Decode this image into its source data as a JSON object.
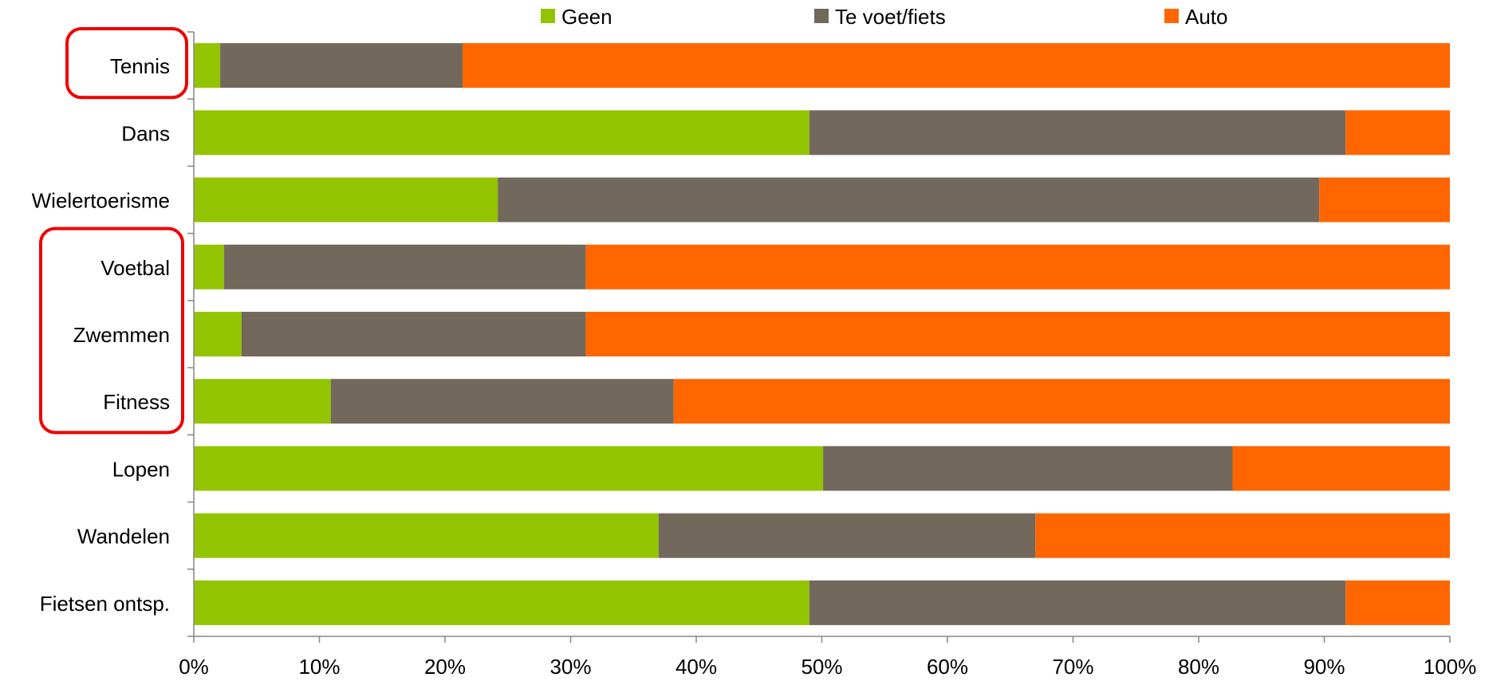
{
  "chart_data": {
    "type": "bar",
    "orientation": "horizontal",
    "stacked": "percent",
    "categories": [
      "Tennis",
      "Dans",
      "Wielertoerisme",
      "Voetbal",
      "Zwemmen",
      "Fitness",
      "Lopen",
      "Wandelen",
      "Fietsen ontsp."
    ],
    "series": [
      {
        "name": "Geen",
        "color": "#92c500",
        "values": [
          2.1,
          49.0,
          24.2,
          2.4,
          3.8,
          10.9,
          50.1,
          37.0,
          49.0
        ]
      },
      {
        "name": "Te voet/fiets",
        "color": "#72685b",
        "values": [
          19.3,
          42.7,
          65.4,
          28.8,
          27.4,
          27.3,
          32.6,
          30.0,
          42.7
        ]
      },
      {
        "name": "Auto",
        "color": "#ff6600",
        "values": [
          78.6,
          8.3,
          10.4,
          68.8,
          68.8,
          61.8,
          17.3,
          33.0,
          8.3
        ]
      }
    ],
    "xlim": [
      0,
      100
    ],
    "xticks": [
      "0%",
      "10%",
      "20%",
      "30%",
      "40%",
      "50%",
      "60%",
      "70%",
      "80%",
      "90%",
      "100%"
    ],
    "legend_position": "top",
    "grid": false,
    "highlights": [
      {
        "categories": [
          "Tennis"
        ],
        "color": "#ee0000"
      },
      {
        "categories": [
          "Voetbal",
          "Zwemmen",
          "Fitness"
        ],
        "color": "#ee0000"
      }
    ]
  }
}
